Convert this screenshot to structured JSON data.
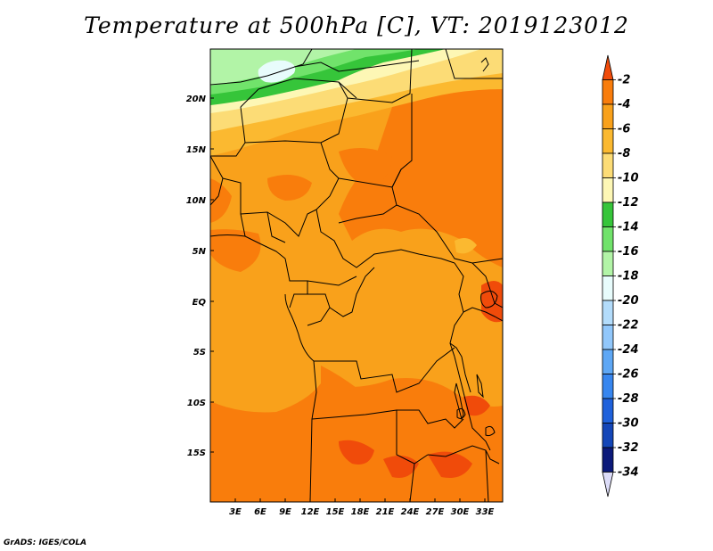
{
  "title": "Temperature at 500hPa [C], VT: 2019123012",
  "credit": "GrADS: IGES/COLA",
  "lat_labels": [
    "20N",
    "15N",
    "10N",
    "5N",
    "EQ",
    "5S",
    "10S",
    "15S"
  ],
  "lon_labels": [
    "3E",
    "6E",
    "9E",
    "12E",
    "15E",
    "18E",
    "21E",
    "24E",
    "27E",
    "30E",
    "33E"
  ],
  "colorbar": {
    "labels": [
      "-2",
      "-4",
      "-6",
      "-8",
      "-10",
      "-12",
      "-14",
      "-16",
      "-18",
      "-20",
      "-22",
      "-24",
      "-26",
      "-28",
      "-30",
      "-32",
      "-34"
    ],
    "colors": [
      "#f04b0a",
      "#f97d0c",
      "#f9a11b",
      "#fbb930",
      "#fcdc76",
      "#fdf7b5",
      "#36c53a",
      "#71e36b",
      "#b2f4a7",
      "#e8fcfc",
      "#b3dcfb",
      "#91c7fb",
      "#5ea7f5",
      "#3786ef",
      "#1f61db",
      "#1446b8",
      "#0c1a7a",
      "#dcdcf8"
    ]
  },
  "map": {
    "domain": "Africa (1E–34E, 19S–24N)",
    "field_colors": {
      "dark_orange": "#f04b0a",
      "orange": "#f97d0c",
      "light_orange": "#f9a11b",
      "amber": "#fbb930",
      "yellow": "#fcdc76",
      "pale_yellow": "#fdf7b5",
      "green": "#36c53a",
      "light_green": "#71e36b",
      "pale_green": "#b2f4a7",
      "cyan": "#e8fcfc",
      "red_spot": "#ee3a1e"
    }
  }
}
